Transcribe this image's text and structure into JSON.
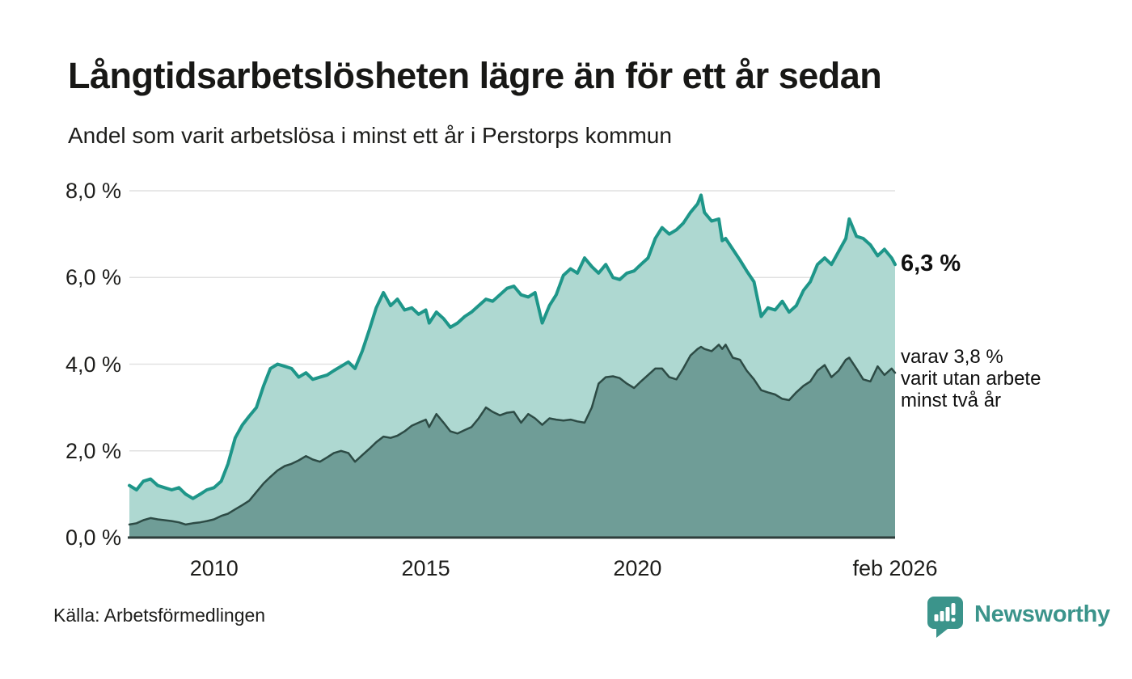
{
  "header": {
    "title": "Långtidsarbetslösheten lägre än för ett år sedan",
    "subtitle": "Andel som varit arbetslösa i minst ett år i Perstorps kommun"
  },
  "annotations": {
    "total_end": "6,3 %",
    "two_year_end": "varav 3,8 %\nvarit utan arbete\nminst två år"
  },
  "footer": {
    "source": "Källa: Arbetsförmedlingen",
    "brand": "Newsworthy",
    "brand_color": "#3b948b"
  },
  "chart_data": {
    "type": "area",
    "title": "Långtidsarbetslösheten lägre än för ett år sedan",
    "subtitle": "Andel som varit arbetslösa i minst ett år i Perstorps kommun",
    "xlabel": "",
    "ylabel": "",
    "grid": "horizontal",
    "legend_position": "none",
    "grid_color": "#e1e1e1",
    "axis_color": "#2e3d3b",
    "xlim": [
      2008.0,
      2026.083
    ],
    "ylim": [
      0,
      8
    ],
    "yticks": [
      {
        "v": 0,
        "label": "0,0 %"
      },
      {
        "v": 2,
        "label": "2,0 %"
      },
      {
        "v": 4,
        "label": "4,0 %"
      },
      {
        "v": 6,
        "label": "6,0 %"
      },
      {
        "v": 8,
        "label": "8,0 %"
      }
    ],
    "xticks": [
      {
        "v": 2010,
        "label": "2010"
      },
      {
        "v": 2015,
        "label": "2015"
      },
      {
        "v": 2020,
        "label": "2020"
      },
      {
        "v": 2026.083,
        "label": "feb 2026"
      }
    ],
    "x": [
      2008.0,
      2008.17,
      2008.33,
      2008.5,
      2008.67,
      2008.83,
      2009.0,
      2009.17,
      2009.33,
      2009.5,
      2009.67,
      2009.83,
      2010.0,
      2010.17,
      2010.33,
      2010.5,
      2010.67,
      2010.83,
      2011.0,
      2011.17,
      2011.33,
      2011.5,
      2011.67,
      2011.83,
      2012.0,
      2012.17,
      2012.33,
      2012.5,
      2012.67,
      2012.83,
      2013.0,
      2013.17,
      2013.33,
      2013.5,
      2013.67,
      2013.83,
      2014.0,
      2014.17,
      2014.33,
      2014.5,
      2014.67,
      2014.83,
      2015.0,
      2015.08,
      2015.25,
      2015.42,
      2015.58,
      2015.75,
      2015.92,
      2016.08,
      2016.25,
      2016.42,
      2016.58,
      2016.75,
      2016.92,
      2017.08,
      2017.25,
      2017.42,
      2017.58,
      2017.75,
      2017.92,
      2018.08,
      2018.25,
      2018.42,
      2018.58,
      2018.75,
      2018.92,
      2019.08,
      2019.25,
      2019.42,
      2019.58,
      2019.75,
      2019.92,
      2020.08,
      2020.25,
      2020.42,
      2020.58,
      2020.75,
      2020.92,
      2021.08,
      2021.25,
      2021.42,
      2021.5,
      2021.58,
      2021.75,
      2021.92,
      2022.0,
      2022.08,
      2022.25,
      2022.42,
      2022.58,
      2022.75,
      2022.92,
      2023.08,
      2023.25,
      2023.42,
      2023.58,
      2023.75,
      2023.92,
      2024.08,
      2024.25,
      2024.42,
      2024.58,
      2024.75,
      2024.92,
      2025.0,
      2025.17,
      2025.33,
      2025.5,
      2025.67,
      2025.83,
      2026.0,
      2026.083
    ],
    "series": [
      {
        "name": "Andel arbetslösa minst ett år",
        "color": "#1e9689",
        "fill": "#aed8d1",
        "stroke_width": 4,
        "latest_value": 6.3,
        "end_label": "6,3 %",
        "values": [
          1.2,
          1.1,
          1.3,
          1.35,
          1.2,
          1.15,
          1.1,
          1.15,
          1.0,
          0.9,
          1.0,
          1.1,
          1.15,
          1.3,
          1.7,
          2.3,
          2.6,
          2.8,
          3.0,
          3.5,
          3.9,
          4.0,
          3.95,
          3.9,
          3.7,
          3.8,
          3.65,
          3.7,
          3.75,
          3.85,
          3.95,
          4.05,
          3.9,
          4.3,
          4.8,
          5.3,
          5.65,
          5.35,
          5.5,
          5.25,
          5.3,
          5.15,
          5.25,
          4.95,
          5.2,
          5.05,
          4.85,
          4.95,
          5.1,
          5.2,
          5.35,
          5.5,
          5.45,
          5.6,
          5.75,
          5.8,
          5.6,
          5.55,
          5.65,
          4.95,
          5.35,
          5.6,
          6.05,
          6.2,
          6.1,
          6.45,
          6.25,
          6.1,
          6.3,
          6.0,
          5.95,
          6.1,
          6.15,
          6.3,
          6.45,
          6.9,
          7.15,
          7.0,
          7.1,
          7.25,
          7.5,
          7.7,
          7.9,
          7.5,
          7.3,
          7.35,
          6.85,
          6.9,
          6.65,
          6.4,
          6.15,
          5.9,
          5.1,
          5.3,
          5.25,
          5.45,
          5.2,
          5.35,
          5.7,
          5.9,
          6.3,
          6.45,
          6.3,
          6.6,
          6.9,
          7.35,
          6.95,
          6.9,
          6.75,
          6.5,
          6.65,
          6.45,
          6.3
        ]
      },
      {
        "name": "Varav utan arbete minst två år",
        "color": "#2d4b45",
        "fill": "#6f9d97",
        "stroke_width": 2.5,
        "latest_value": 3.8,
        "end_label": "varav 3,8 % varit utan arbete minst två år",
        "values": [
          0.3,
          0.33,
          0.4,
          0.45,
          0.42,
          0.4,
          0.38,
          0.35,
          0.3,
          0.33,
          0.35,
          0.38,
          0.42,
          0.5,
          0.55,
          0.65,
          0.75,
          0.85,
          1.05,
          1.25,
          1.4,
          1.55,
          1.65,
          1.7,
          1.78,
          1.88,
          1.8,
          1.75,
          1.85,
          1.95,
          2.0,
          1.95,
          1.75,
          1.9,
          2.05,
          2.2,
          2.33,
          2.3,
          2.35,
          2.45,
          2.58,
          2.65,
          2.72,
          2.55,
          2.85,
          2.65,
          2.45,
          2.4,
          2.48,
          2.55,
          2.75,
          3.0,
          2.9,
          2.82,
          2.88,
          2.9,
          2.65,
          2.85,
          2.75,
          2.6,
          2.75,
          2.72,
          2.7,
          2.72,
          2.68,
          2.65,
          3.0,
          3.55,
          3.7,
          3.72,
          3.68,
          3.55,
          3.45,
          3.6,
          3.75,
          3.9,
          3.9,
          3.7,
          3.65,
          3.9,
          4.2,
          4.35,
          4.4,
          4.35,
          4.3,
          4.45,
          4.35,
          4.45,
          4.15,
          4.1,
          3.85,
          3.65,
          3.4,
          3.35,
          3.3,
          3.2,
          3.17,
          3.35,
          3.5,
          3.6,
          3.85,
          3.98,
          3.7,
          3.85,
          4.1,
          4.15,
          3.9,
          3.65,
          3.6,
          3.95,
          3.75,
          3.9,
          3.8
        ]
      }
    ]
  }
}
